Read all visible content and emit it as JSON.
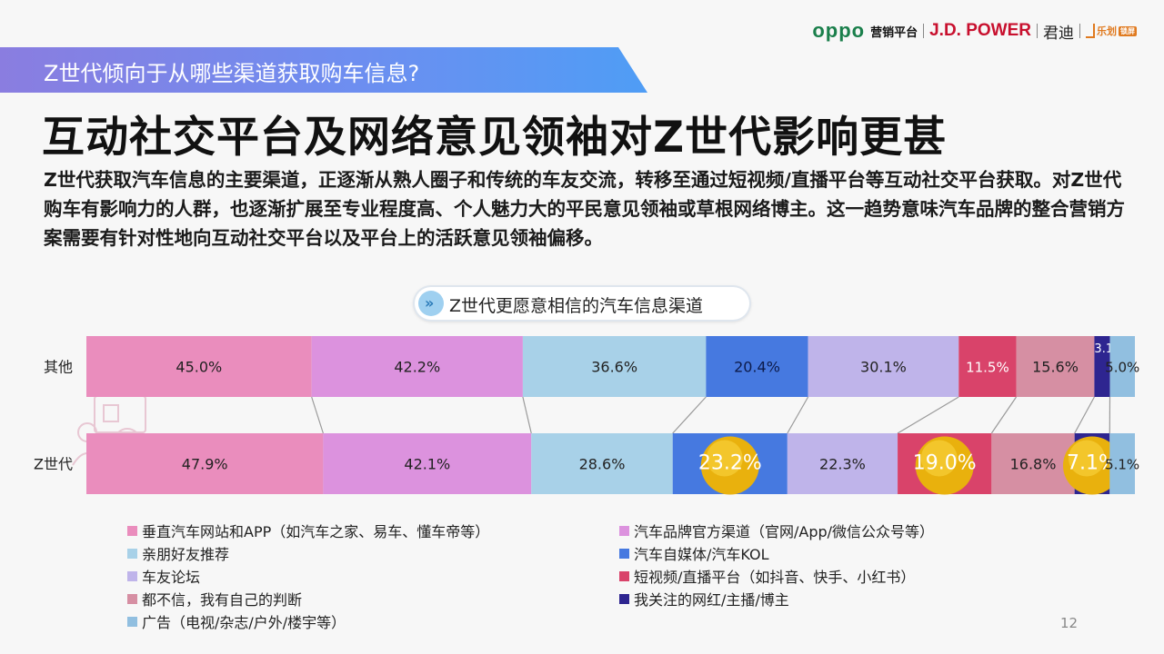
{
  "logos": {
    "oppo": "oppo",
    "marketing": "营销平台",
    "jdpower": "J.D. POWER",
    "jundi": "君迪",
    "lehua": "乐划",
    "lehua_tag": "锁屏"
  },
  "section_title": "Z世代倾向于从哪些渠道获取购车信息?",
  "headline": "互动社交平台及网络意见领袖对Z世代影响更甚",
  "description": "Z世代获取汽车信息的主要渠道，正逐渐从熟人圈子和传统的车友交流，转移至通过短视频/直播平台等互动社交平台获取。对Z世代购车有影响力的人群，也逐渐扩展至专业程度高、个人魅力大的平民意见领袖或草根网络博主。这一趋势意味汽车品牌的整合营销方案需要有针对性地向互动社交平台以及平台上的活跃意见领袖偏移。",
  "page_number": "12",
  "chart_data": {
    "type": "bar",
    "orientation": "horizontal",
    "stacked": true,
    "title": "Z世代更愿意相信的汽车信息渠道",
    "categories": [
      "其他",
      "Z世代"
    ],
    "series": [
      {
        "name": "垂直汽车网站和APP（如汽车之家、易车、懂车帝等）",
        "color": "#ea8dbd",
        "values": [
          45.0,
          47.9
        ],
        "labels": [
          "45.0%",
          "47.9%"
        ]
      },
      {
        "name": "汽车品牌官方渠道（官网/App/微信公众号等）",
        "color": "#dc92de",
        "values": [
          42.2,
          42.1
        ],
        "labels": [
          "42.2%",
          "42.1%"
        ]
      },
      {
        "name": "亲朋好友推荐",
        "color": "#a8d1e8",
        "values": [
          36.6,
          28.6
        ],
        "labels": [
          "36.6%",
          "28.6%"
        ]
      },
      {
        "name": "汽车自媒体/汽车KOL",
        "color": "#4679e0",
        "values": [
          20.4,
          23.2
        ],
        "labels": [
          "20.4%",
          "23.2%"
        ]
      },
      {
        "name": "车友论坛",
        "color": "#bfb4ea",
        "values": [
          30.1,
          22.3
        ],
        "labels": [
          "30.1%",
          "22.3%"
        ]
      },
      {
        "name": "短视频/直播平台（如抖音、快手、小红书）",
        "color": "#d9436a",
        "values": [
          11.5,
          19.0
        ],
        "labels": [
          "11.5%",
          "19.0%"
        ]
      },
      {
        "name": "都不信，我有自己的判断",
        "color": "#d68fa3",
        "values": [
          15.6,
          16.8
        ],
        "labels": [
          "15.6%",
          "16.8%"
        ]
      },
      {
        "name": "我关注的网红/主播/博主",
        "color": "#2e2590",
        "values": [
          3.1,
          7.1
        ],
        "labels": [
          "3.1%",
          "7.1%"
        ]
      },
      {
        "name": "广告（电视/杂志/户外/楼宇等）",
        "color": "#91bfe0",
        "values": [
          5.0,
          5.1
        ],
        "labels": [
          "5.0%",
          "5.1%"
        ]
      }
    ],
    "highlighted_values": [
      {
        "series": "汽车自媒体/汽车KOL",
        "category": "Z世代"
      },
      {
        "series": "短视频/直播平台（如抖音、快手、小红书）",
        "category": "Z世代"
      },
      {
        "series": "我关注的网红/主播/博主",
        "category": "Z世代"
      }
    ],
    "legend_position": "bottom",
    "grid": false
  }
}
